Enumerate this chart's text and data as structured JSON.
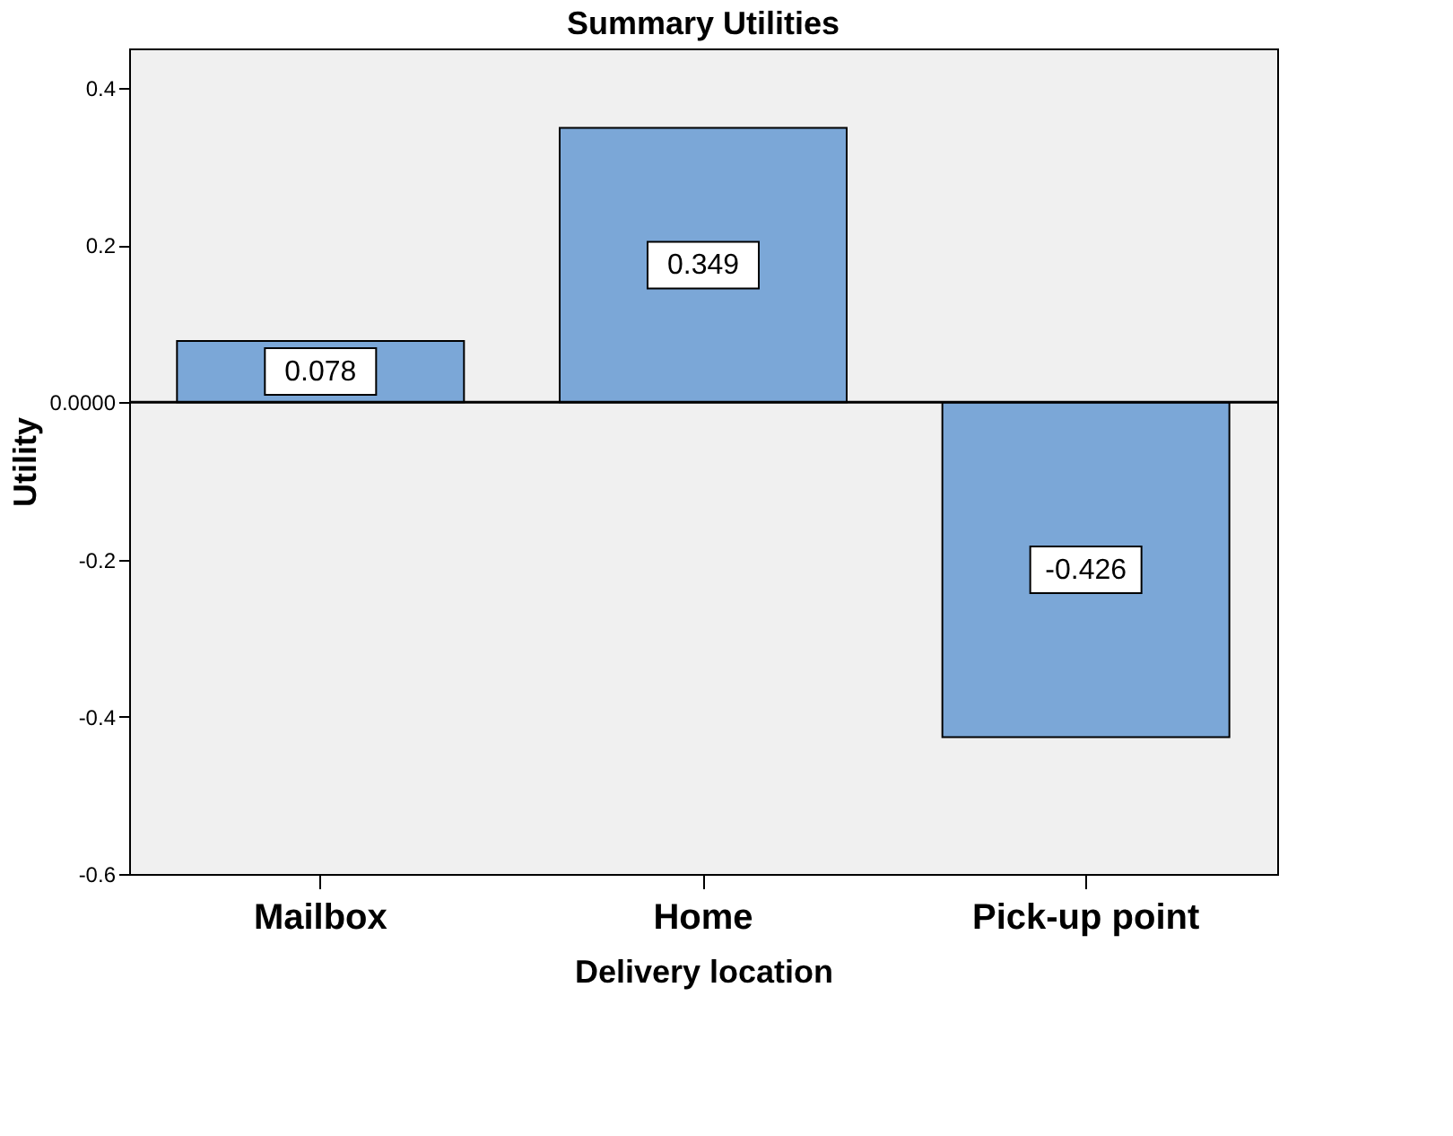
{
  "chart_data": {
    "type": "bar",
    "title": "Summary Utilities",
    "xlabel": "Delivery location",
    "ylabel": "Utility",
    "categories": [
      "Mailbox",
      "Home",
      "Pick-up point"
    ],
    "values": [
      0.078,
      0.349,
      -0.426
    ],
    "color": "#7ba7d7",
    "ylim": [
      -0.6,
      0.45
    ],
    "yticks": [
      {
        "value": -0.6,
        "label": "-0.6"
      },
      {
        "value": -0.4,
        "label": "-0.4"
      },
      {
        "value": -0.2,
        "label": "-0.2"
      },
      {
        "value": 0,
        "label": "0.0000"
      },
      0.2,
      0.4
    ],
    "ref_lines": [
      {
        "axis": "y",
        "value": 0,
        "color": "#000000"
      }
    ],
    "data_labels": true,
    "grid": false
  }
}
